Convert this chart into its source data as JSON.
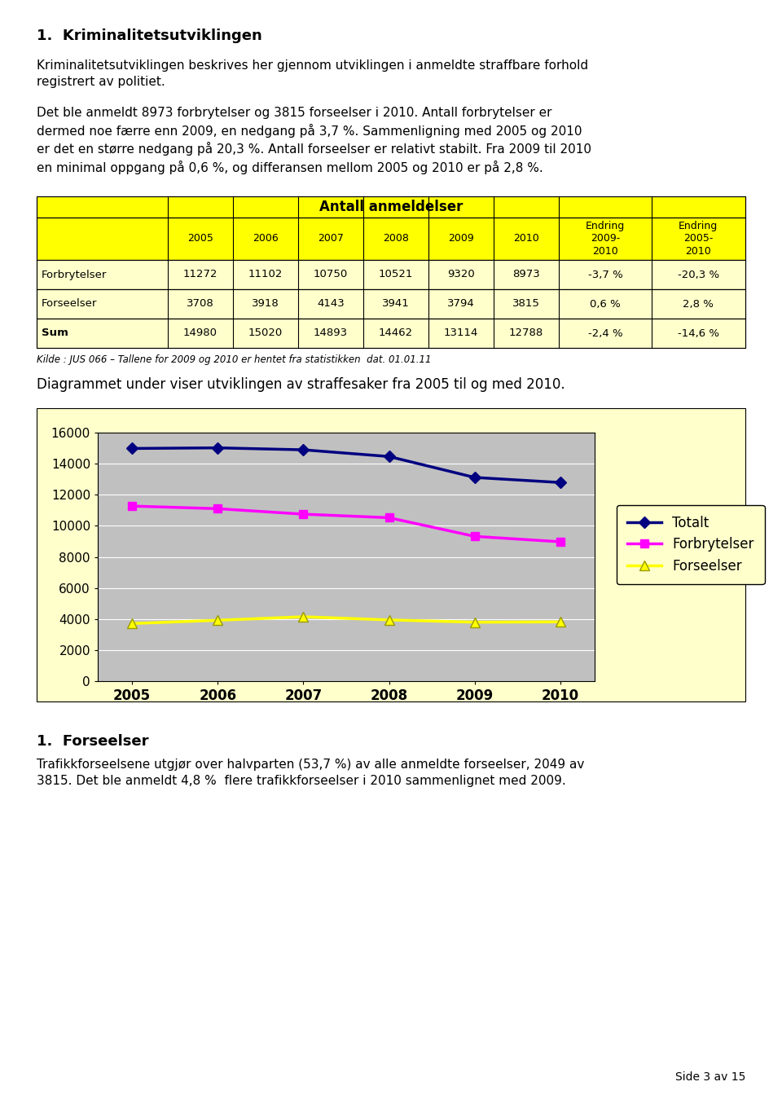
{
  "title1": "1.  Kriminalitetsutviklingen",
  "para1": "Kriminalitetsutviklingen beskrives her gjennom utviklingen i anmeldte straffbare forhold\nregistrert av politiet.",
  "para2": "Det ble anmeldt 8973 forbrytelser og 3815 forseelser i 2010. Antall forbrytelser er\ndermed noe færre enn 2009, en nedgang på 3,7 %. Sammenligning med 2005 og 2010\ner det en større nedgang på 20,3 %. Antall forseelser er relativt stabilt. Fra 2009 til 2010\nen minimal oppgang på 0,6 %, og differansen mellom 2005 og 2010 er på 2,8 %.",
  "table_title": "Antall anmeldelser",
  "table_header": [
    "",
    "2005",
    "2006",
    "2007",
    "2008",
    "2009",
    "2010",
    "Endring\n2009-\n2010",
    "Endring\n2005-\n2010"
  ],
  "table_rows": [
    [
      "Forbrytelser",
      "11272",
      "11102",
      "10750",
      "10521",
      "9320",
      "8973",
      "-3,7 %",
      "-20,3 %"
    ],
    [
      "Forseelser",
      "3708",
      "3918",
      "4143",
      "3941",
      "3794",
      "3815",
      "0,6 %",
      "2,8 %"
    ],
    [
      "Sum",
      "14980",
      "15020",
      "14893",
      "14462",
      "13114",
      "12788",
      "-2,4 %",
      "-14,6 %"
    ]
  ],
  "table_bg_yellow": "#FFFF00",
  "table_bg_light": "#FFFFCC",
  "source_text": "Kilde : JUS 066 – Tallene for 2009 og 2010 er hentet fra statistikken  dat. 01.01.11",
  "chart_para": "Diagrammet under viser utviklingen av straffesaker fra 2005 til og med 2010.",
  "years": [
    2005,
    2006,
    2007,
    2008,
    2009,
    2010
  ],
  "totalt": [
    14980,
    15020,
    14893,
    14462,
    13114,
    12788
  ],
  "forbrytelser": [
    11272,
    11102,
    10750,
    10521,
    9320,
    8973
  ],
  "forseelser": [
    3708,
    3918,
    4143,
    3941,
    3794,
    3815
  ],
  "chart_bg": "#FFFFCC",
  "plot_bg": "#C0C0C0",
  "line_totalt_color": "#000080",
  "line_forbrytelser_color": "#FF00FF",
  "line_forseelser_color": "#FFFF00",
  "line_forseelser_edge": "#999900",
  "section2_title": "1.  Forseelser",
  "section2_para": "Trafikkforseelsene utgjør over halvparten (53,7 %) av alle anmeldte forseelser, 2049 av\n3815. Det ble anmeldt 4,8 %  flere trafikkforseelser i 2010 sammenlignet med 2009.",
  "page_text": "Side 3 av 15",
  "ylim": [
    0,
    16000
  ],
  "yticks": [
    0,
    2000,
    4000,
    6000,
    8000,
    10000,
    12000,
    14000,
    16000
  ],
  "col_widths_rel": [
    0.185,
    0.092,
    0.092,
    0.092,
    0.092,
    0.092,
    0.092,
    0.131,
    0.131
  ]
}
